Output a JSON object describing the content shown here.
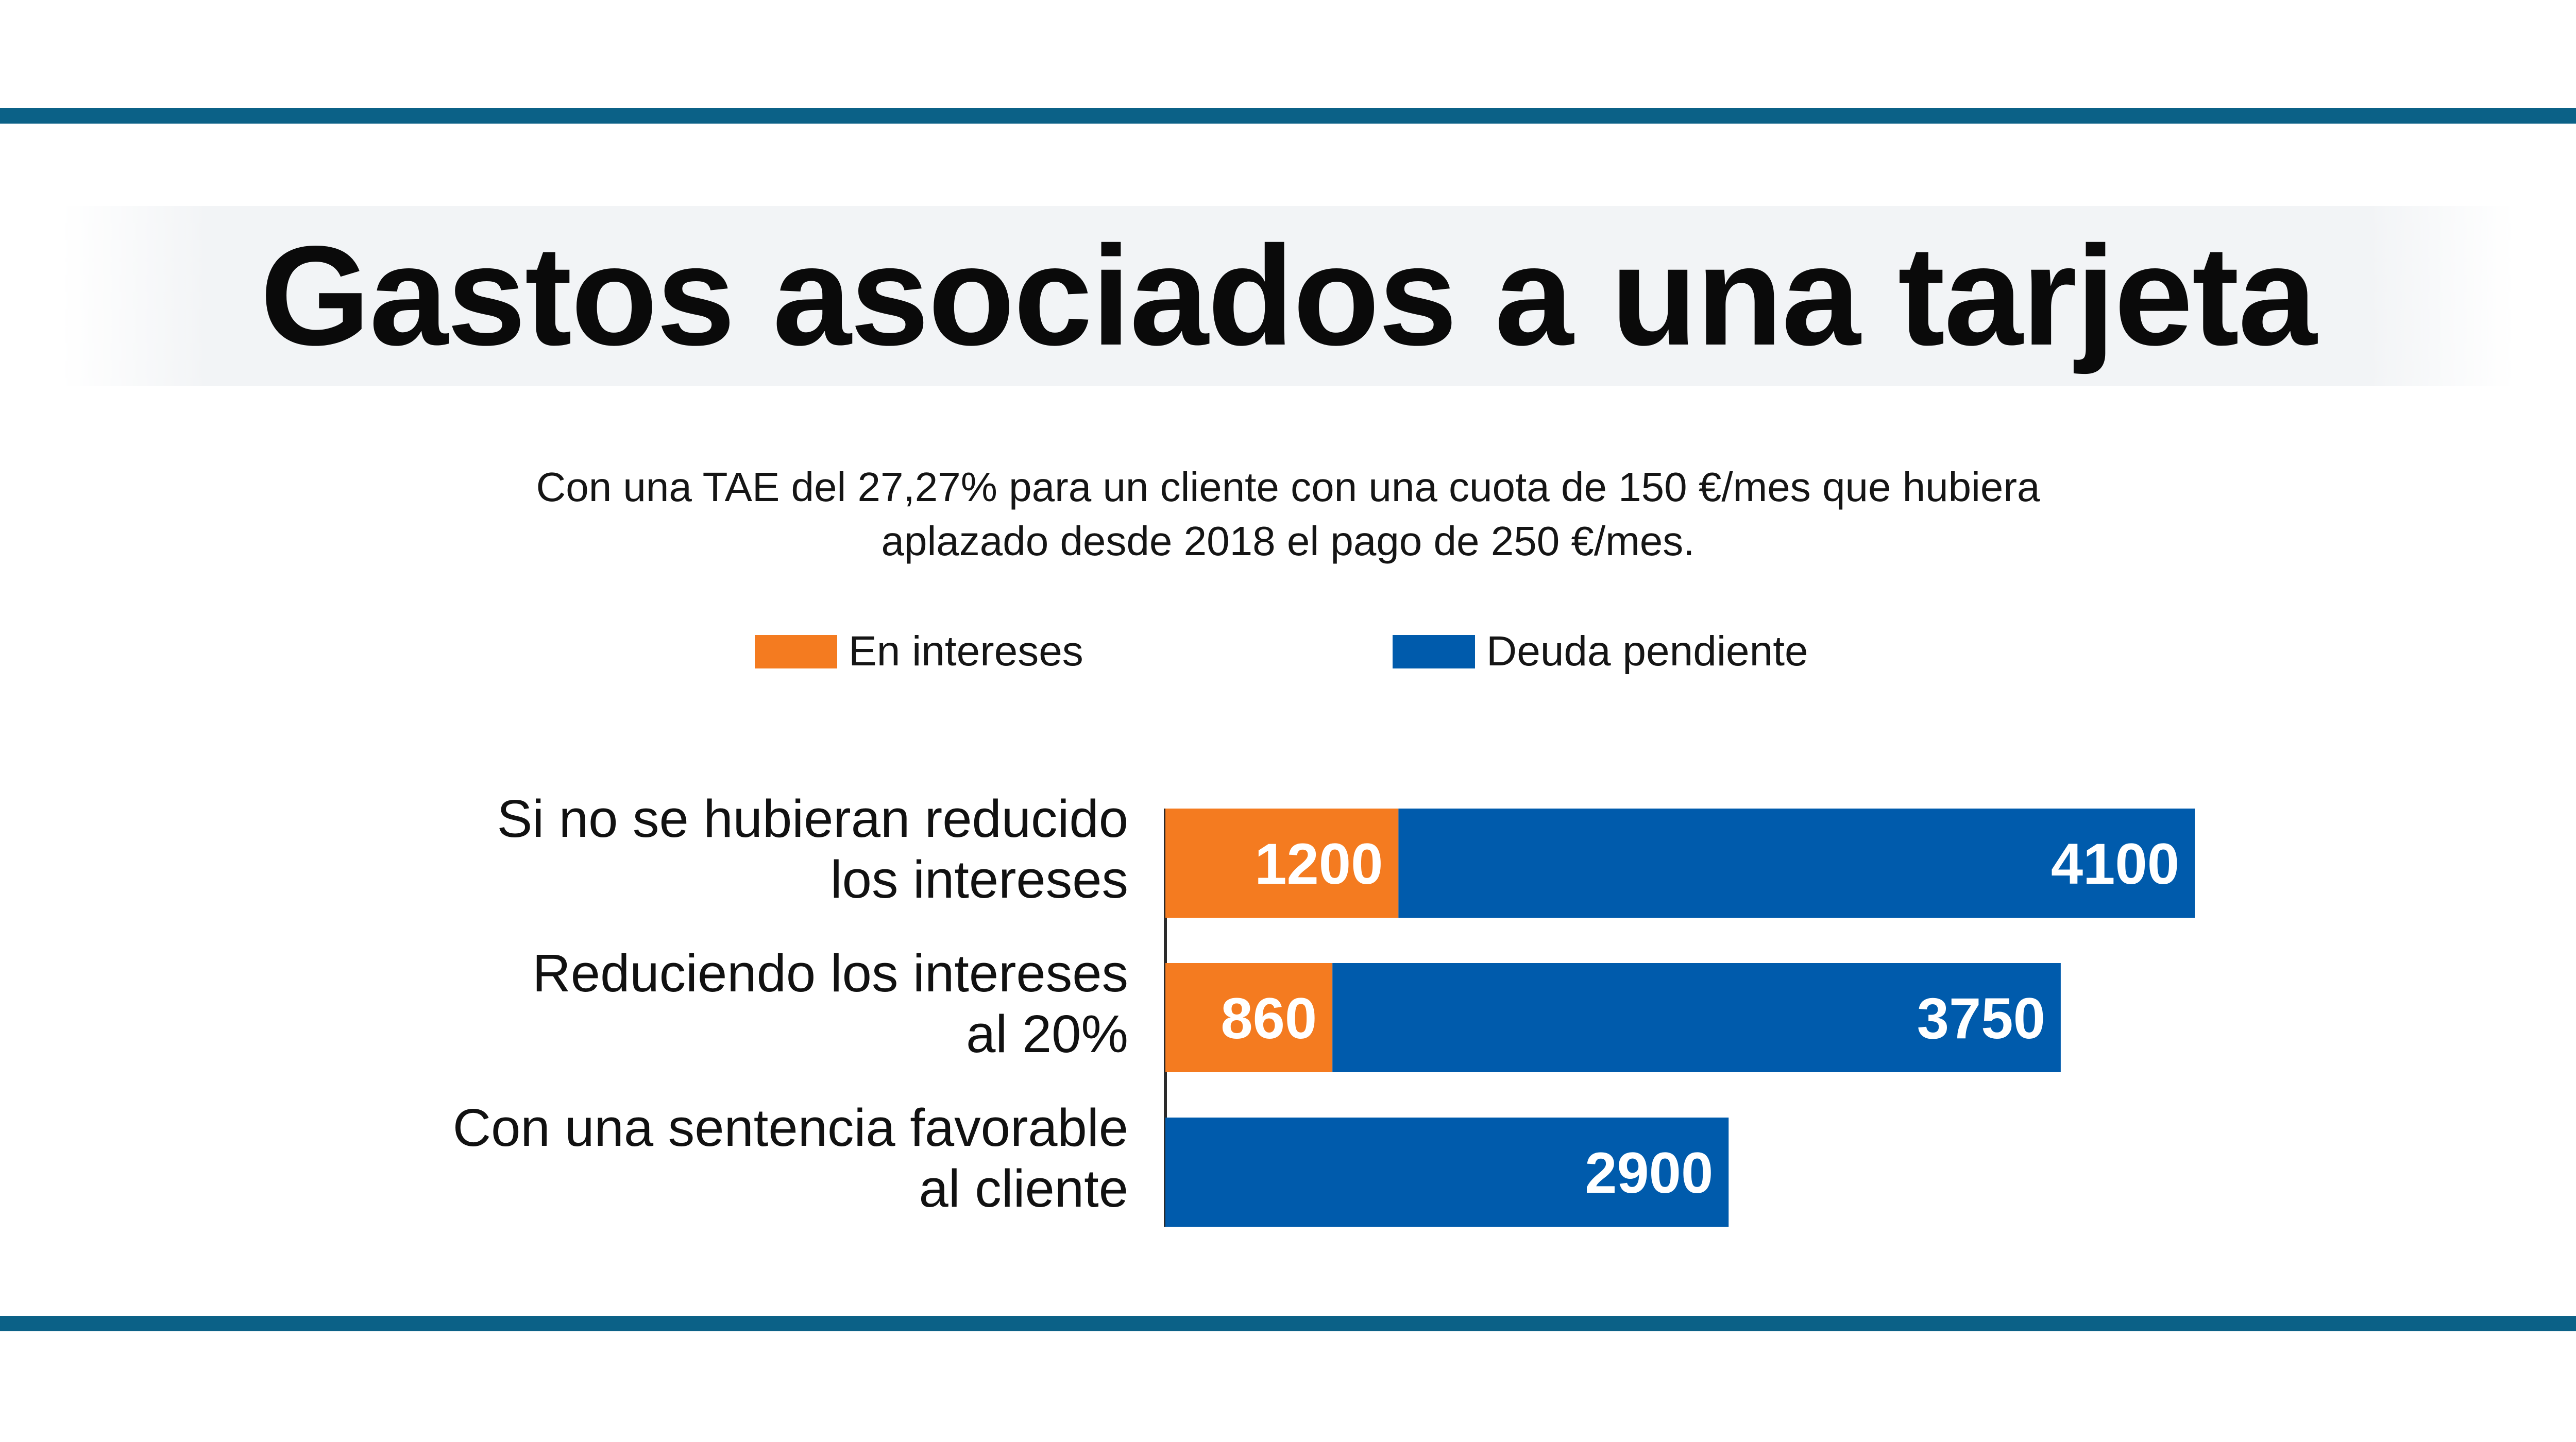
{
  "colors": {
    "rule": "#0b6187",
    "interest": "#f47b20",
    "debt": "#005bac",
    "text": "#111111"
  },
  "header": {
    "title": "Gastos asociados a una tarjeta",
    "subtitle_line1": "Con una TAE del 27,27% para un cliente con una cuota de 150 €/mes que hubiera",
    "subtitle_line2": "aplazado desde 2018 el pago de 250 €/mes."
  },
  "legend": {
    "interest_label": "En intereses",
    "debt_label": "Deuda pendiente"
  },
  "chart_data": {
    "type": "bar",
    "orientation": "horizontal",
    "stacked": true,
    "title": "Gastos asociados a una tarjeta",
    "xlabel": "",
    "ylabel": "",
    "xlim": [
      0,
      5300
    ],
    "grid": false,
    "legend_position": "top",
    "categories": [
      [
        "Si no se hubieran reducido",
        "los intereses"
      ],
      [
        "Reduciendo los intereses",
        "al 20%"
      ],
      [
        "Con una sentencia favorable",
        "al cliente"
      ]
    ],
    "series": [
      {
        "name": "En intereses",
        "color": "#f47b20",
        "values": [
          1200,
          860,
          0
        ]
      },
      {
        "name": "Deuda pendiente",
        "color": "#005bac",
        "values": [
          4100,
          3750,
          2900
        ]
      }
    ]
  }
}
